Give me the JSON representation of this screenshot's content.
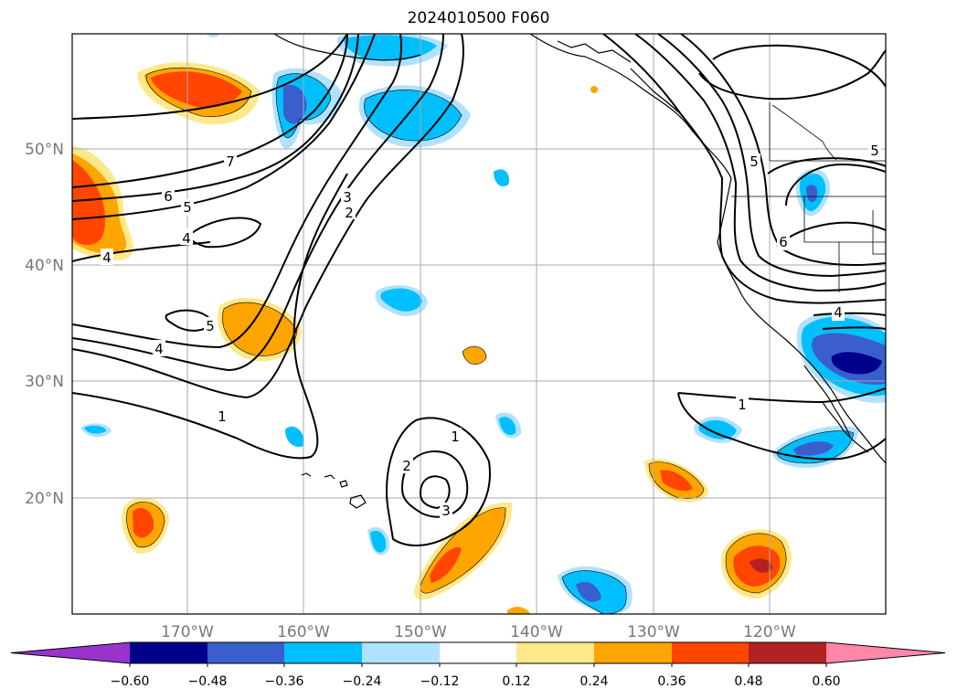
{
  "title": "2024010500 F060",
  "lat_labels": [
    "50°N",
    "40°N",
    "30°N",
    "20°N"
  ],
  "lon_labels": [
    "170°W",
    "160°W",
    "150°W",
    "140°W",
    "130°W",
    "120°W"
  ],
  "colorbar": {
    "labels": [
      "−0.60",
      "−0.48",
      "−0.36",
      "−0.24",
      "−0.12",
      "0.12",
      "0.24",
      "0.36",
      "0.48",
      "0.60"
    ],
    "colors": [
      "#9933cc",
      "#00008b",
      "#3a5fcd",
      "#00bfff",
      "#b0e2ff",
      "#ffffff",
      "#ffe88a",
      "#ffa500",
      "#ff4500",
      "#b22222",
      "#ff88aa"
    ]
  },
  "contour_labels": [
    "7",
    "6",
    "5",
    "4",
    "4",
    "5",
    "4",
    "1",
    "3",
    "2",
    "1",
    "2",
    "3",
    "1",
    "5",
    "6",
    "5",
    "4"
  ]
}
